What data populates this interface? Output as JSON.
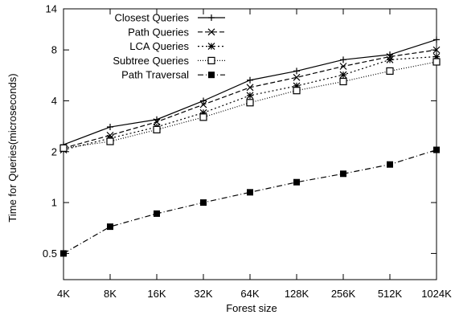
{
  "chart_data": {
    "type": "line",
    "xlabel": "Forest size",
    "ylabel": "Time for Queries(microseconds)",
    "yscale": "log2",
    "ylim": [
      0.35,
      14
    ],
    "yticks": [
      0.5,
      1,
      2,
      4,
      8,
      14
    ],
    "ytick_labels": [
      "0.5",
      "1",
      "2",
      "4",
      "8",
      "14"
    ],
    "categories": [
      "4K",
      "8K",
      "16K",
      "32K",
      "64K",
      "128K",
      "256K",
      "512K",
      "1024K"
    ],
    "grid": false,
    "legend_position": "top-left",
    "series": [
      {
        "name": "Closest Queries",
        "marker": "plus",
        "dash": "solid",
        "values": [
          2.2,
          2.8,
          3.1,
          4.0,
          5.3,
          6.0,
          7.0,
          7.5,
          9.2
        ]
      },
      {
        "name": "Path Queries",
        "marker": "cross",
        "dash": "dashed",
        "values": [
          2.1,
          2.5,
          3.0,
          3.8,
          4.8,
          5.5,
          6.4,
          7.3,
          8.0
        ]
      },
      {
        "name": "LCA Queries",
        "marker": "star",
        "dash": "dotted",
        "values": [
          2.05,
          2.4,
          2.8,
          3.4,
          4.3,
          4.9,
          5.7,
          7.0,
          7.3
        ]
      },
      {
        "name": "Subtree Queries",
        "marker": "open-square",
        "dash": "fine-dotted",
        "values": [
          2.1,
          2.3,
          2.7,
          3.2,
          3.9,
          4.6,
          5.2,
          6.0,
          6.8
        ]
      },
      {
        "name": "Path Traversal",
        "marker": "filled-square",
        "dash": "dash-dot",
        "values": [
          0.5,
          0.72,
          0.86,
          1.0,
          1.15,
          1.32,
          1.48,
          1.68,
          2.05
        ]
      }
    ]
  }
}
